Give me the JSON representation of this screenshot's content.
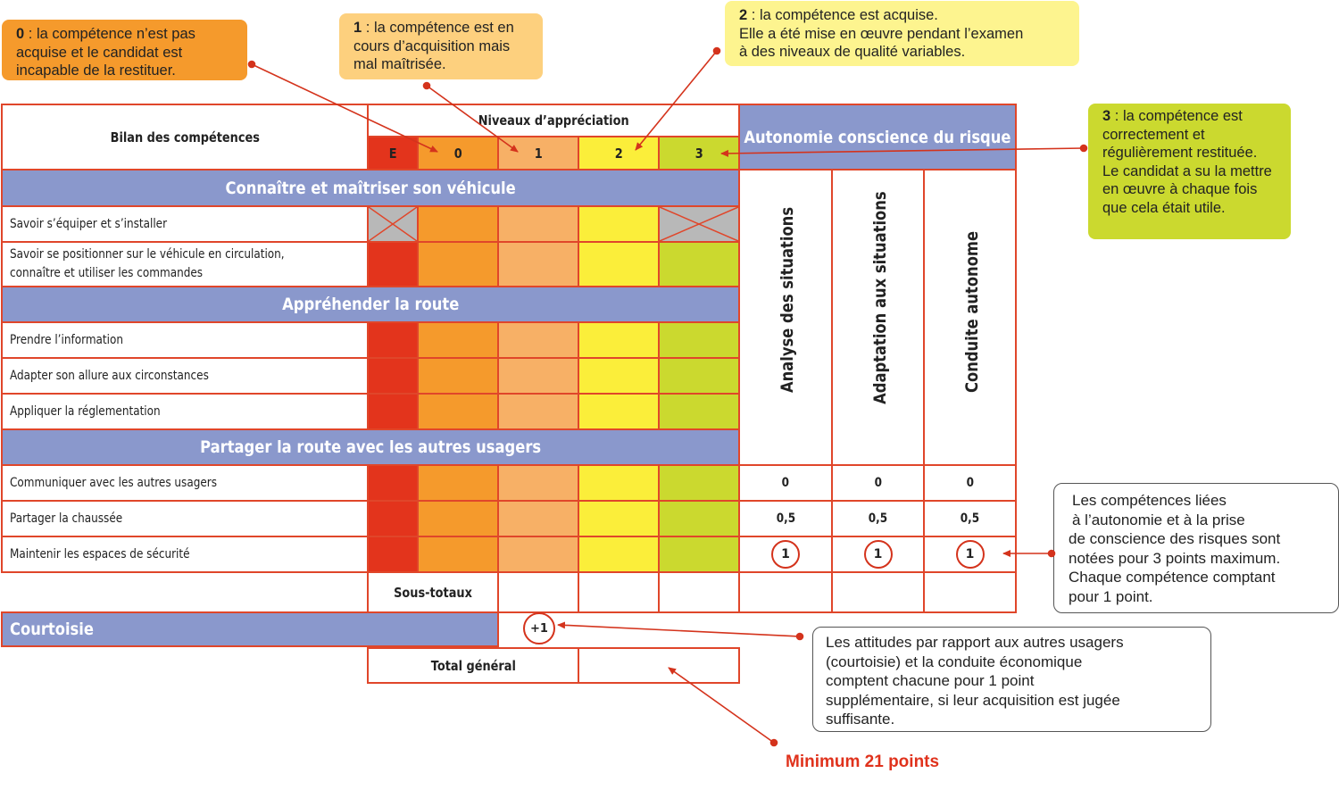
{
  "colors": {
    "E": "#e3341c",
    "0": "#f59a2c",
    "1": "#f7b066",
    "2": "#fbee3a",
    "3": "#cbd92f",
    "section": "#8a98cc",
    "border": "#e0462a",
    "crossed": "#b8b8b8"
  },
  "callouts": {
    "level0": {
      "num": "0",
      "text": " : la compétence n’est pas acquise et le candidat est incapable de la restituer."
    },
    "level1": {
      "num": "1",
      "text": " : la compétence est en cours d’acquisition mais mal maîtrisée."
    },
    "level2": {
      "num": "2",
      "line1": " : la compétence est acquise.",
      "line2": "Elle a été mise en œuvre pendant l’examen",
      "line3": "à des niveaux de qualité variables."
    },
    "level3": {
      "num": "3",
      "text": " : la compétence est correctement et régulièrement restituée. Le candidat a su la mettre en œuvre à chaque fois que cela était utile."
    }
  },
  "table": {
    "bilan_label": "Bilan des compétences",
    "niveaux_label": "Niveaux d’appréciation",
    "levels": [
      "E",
      "0",
      "1",
      "2",
      "3"
    ],
    "autonomie_label": "Autonomie conscience du risque",
    "autonomie_columns": [
      "Analyse des situations",
      "Adaptation aux situations",
      "Conduite autonome"
    ],
    "sections": {
      "s1": "Connaître et maîtriser son véhicule",
      "s2": "Appréhender la route",
      "s3": "Partager la route avec les autres usagers"
    },
    "rows": {
      "r1": "Savoir s’équiper et s’installer",
      "r2a": "Savoir se positionner sur le véhicule en circulation,",
      "r2b": "connaître et utiliser les commandes",
      "r3": "Prendre l’information",
      "r4": "Adapter son allure aux circonstances",
      "r5": "Appliquer la réglementation",
      "r6": "Communiquer avec les autres usagers",
      "r7": "Partager la chaussée",
      "r8": "Maintenir les espaces de sécurité"
    },
    "scores": {
      "r6": [
        "0",
        "0",
        "0"
      ],
      "r7": [
        "0,5",
        "0,5",
        "0,5"
      ],
      "r8": [
        "1",
        "1",
        "1"
      ]
    },
    "sous_totaux": "Sous-totaux",
    "courtoisie": "Courtoisie",
    "courtoisie_bonus": "+1",
    "total": "Total général"
  },
  "notes": {
    "autonomie_note": {
      "l1": "Les compétences liées",
      "l2": "à l’autonomie et à la prise",
      "l3": "de conscience des risques sont",
      "l4": "notées pour 3 points maximum.",
      "l5": "Chaque compétence comptant",
      "l6": "pour 1 point."
    },
    "courtoisie_note": {
      "l1": "Les attitudes par rapport aux autres usagers",
      "l2": "(courtoisie) et la conduite économique",
      "l3": "comptent chacune pour 1 point",
      "l4": "supplémentaire, si leur acquisition est jugée",
      "l5": "suffisante."
    },
    "minimum": "Minimum 21 points"
  }
}
